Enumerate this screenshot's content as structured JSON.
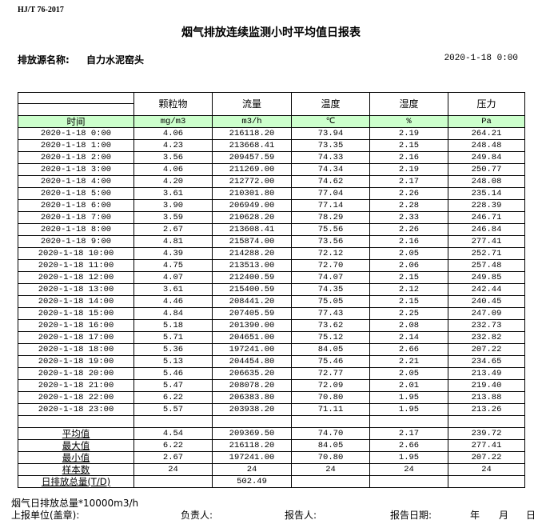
{
  "standard": "HJ/T  76-2017",
  "title": "烟气排放连续监测小时平均值日报表",
  "source_label": "排放源名称:",
  "source_name": "自力水泥窑头",
  "report_date": "2020-1-18 0:00",
  "columns": [
    "颗粒物",
    "流量",
    "温度",
    "湿度",
    "压力"
  ],
  "time_label": "时间",
  "units": [
    "mg/m3",
    "m3/h",
    "℃",
    "%",
    "Pa"
  ],
  "rows": [
    [
      "2020-1-18 0:00",
      "4.06",
      "216118.20",
      "73.94",
      "2.19",
      "264.21"
    ],
    [
      "2020-1-18 1:00",
      "4.23",
      "213668.41",
      "73.35",
      "2.15",
      "248.48"
    ],
    [
      "2020-1-18 2:00",
      "3.56",
      "209457.59",
      "74.33",
      "2.16",
      "249.84"
    ],
    [
      "2020-1-18 3:00",
      "4.06",
      "211269.00",
      "74.34",
      "2.19",
      "250.77"
    ],
    [
      "2020-1-18 4:00",
      "4.20",
      "212772.00",
      "74.62",
      "2.17",
      "248.08"
    ],
    [
      "2020-1-18 5:00",
      "3.61",
      "210301.80",
      "77.04",
      "2.26",
      "235.14"
    ],
    [
      "2020-1-18 6:00",
      "3.90",
      "206949.00",
      "77.14",
      "2.28",
      "228.39"
    ],
    [
      "2020-1-18 7:00",
      "3.59",
      "210628.20",
      "78.29",
      "2.33",
      "246.71"
    ],
    [
      "2020-1-18 8:00",
      "2.67",
      "213608.41",
      "75.56",
      "2.26",
      "246.84"
    ],
    [
      "2020-1-18 9:00",
      "4.81",
      "215874.00",
      "73.56",
      "2.16",
      "277.41"
    ],
    [
      "2020-1-18 10:00",
      "4.39",
      "214288.20",
      "72.12",
      "2.05",
      "252.71"
    ],
    [
      "2020-1-18 11:00",
      "4.75",
      "213513.00",
      "72.70",
      "2.06",
      "257.48"
    ],
    [
      "2020-1-18 12:00",
      "4.07",
      "212400.59",
      "74.07",
      "2.15",
      "249.85"
    ],
    [
      "2020-1-18 13:00",
      "3.61",
      "215400.59",
      "74.35",
      "2.12",
      "242.44"
    ],
    [
      "2020-1-18 14:00",
      "4.46",
      "208441.20",
      "75.05",
      "2.15",
      "240.45"
    ],
    [
      "2020-1-18 15:00",
      "4.84",
      "207405.59",
      "77.43",
      "2.25",
      "247.09"
    ],
    [
      "2020-1-18 16:00",
      "5.18",
      "201390.00",
      "73.62",
      "2.08",
      "232.73"
    ],
    [
      "2020-1-18 17:00",
      "5.71",
      "204651.00",
      "75.12",
      "2.14",
      "232.82"
    ],
    [
      "2020-1-18 18:00",
      "5.36",
      "197241.00",
      "84.05",
      "2.66",
      "207.22"
    ],
    [
      "2020-1-18 19:00",
      "5.13",
      "204454.80",
      "75.46",
      "2.21",
      "234.65"
    ],
    [
      "2020-1-18 20:00",
      "5.46",
      "206635.20",
      "72.77",
      "2.05",
      "213.49"
    ],
    [
      "2020-1-18 21:00",
      "5.47",
      "208078.20",
      "72.09",
      "2.01",
      "219.40"
    ],
    [
      "2020-1-18 22:00",
      "6.22",
      "206383.80",
      "70.80",
      "1.95",
      "213.88"
    ],
    [
      "2020-1-18 23:00",
      "5.57",
      "203938.20",
      "71.11",
      "1.95",
      "213.26"
    ]
  ],
  "summary": [
    [
      "平均值",
      "4.54",
      "209369.50",
      "74.70",
      "2.17",
      "239.72"
    ],
    [
      "最大值",
      "6.22",
      "216118.20",
      "84.05",
      "2.66",
      "277.41"
    ],
    [
      "最小值",
      "2.67",
      "197241.00",
      "70.80",
      "1.95",
      "207.22"
    ],
    [
      "样本数",
      "24",
      "24",
      "24",
      "24",
      "24"
    ],
    [
      "日排放总量(T/D)",
      "",
      "502.49",
      "",
      "",
      ""
    ]
  ],
  "footer": {
    "note": "烟气日排放总量*10000m3/h",
    "unit_label": "上报单位(盖章):",
    "responsible_label": "负责人:",
    "reporter_label": "报告人:",
    "report_date_label": "报告日期:",
    "year": "年",
    "month": "月",
    "day": "日"
  }
}
